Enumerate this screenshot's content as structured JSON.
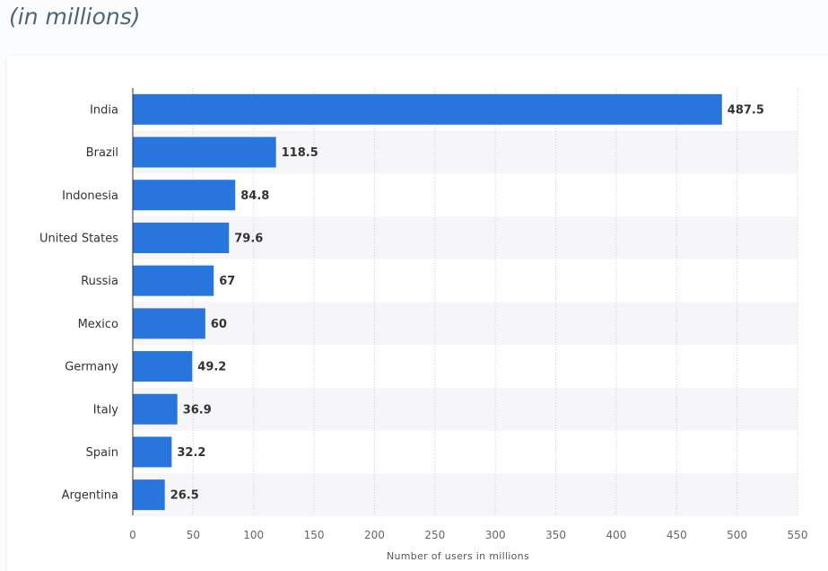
{
  "subtitle": "(in millions)",
  "chart_data": {
    "type": "bar",
    "orientation": "horizontal",
    "categories": [
      "India",
      "Brazil",
      "Indonesia",
      "United States",
      "Russia",
      "Mexico",
      "Germany",
      "Italy",
      "Spain",
      "Argentina"
    ],
    "values": [
      487.5,
      118.5,
      84.8,
      79.6,
      67,
      60,
      49.2,
      36.9,
      32.2,
      26.5
    ],
    "value_labels": [
      "487.5",
      "118.5",
      "84.8",
      "79.6",
      "67",
      "60",
      "49.2",
      "36.9",
      "32.2",
      "26.5"
    ],
    "xlabel": "Number of users in millions",
    "xlim": [
      0,
      550
    ],
    "xticks": [
      0,
      50,
      100,
      150,
      200,
      250,
      300,
      350,
      400,
      450,
      500,
      550
    ],
    "grid": true,
    "bar_color": "#2876dd",
    "stripe_color": "#f6f6f8"
  }
}
